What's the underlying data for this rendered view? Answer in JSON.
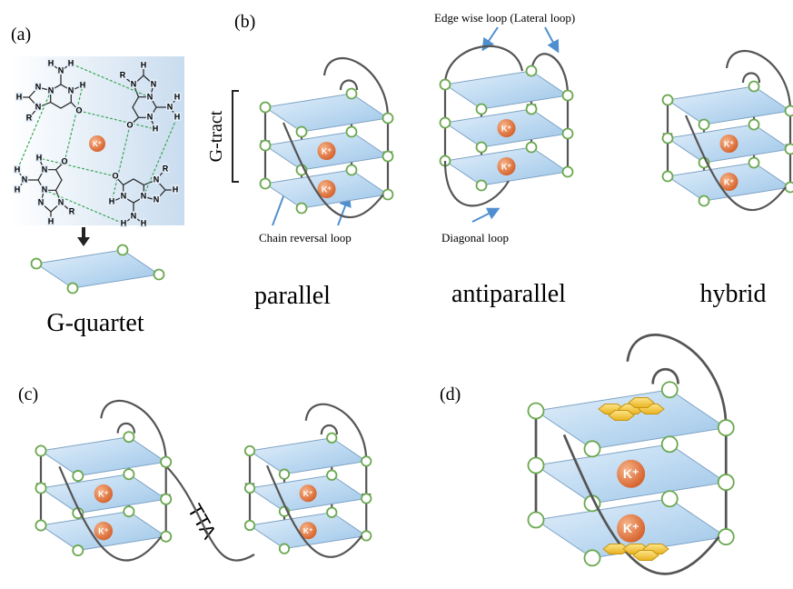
{
  "panel_a": {
    "label": "(a)",
    "atoms": [
      [
        "N",
        "H",
        "O",
        "N",
        "H",
        "H",
        "N",
        "N",
        "N",
        "R",
        "H"
      ],
      [
        "N",
        "H",
        "O",
        "N",
        "H",
        "H",
        "N",
        "N",
        "N",
        "R",
        "H"
      ],
      [
        "N",
        "H",
        "O",
        "N",
        "H",
        "H",
        "N",
        "N",
        "N",
        "R",
        "H"
      ],
      [
        "N",
        "H",
        "O",
        "N",
        "H",
        "H",
        "N",
        "N",
        "N",
        "R",
        "H"
      ]
    ],
    "ion": "K⁺",
    "caption": "G-quartet"
  },
  "panel_b": {
    "label": "(b)",
    "g_tract": "G-tract",
    "chain_reversal_loop": "Chain reversal loop",
    "edgewise_loop": "Edge wise loop (Lateral loop)",
    "diagonal_loop": "Diagonal loop",
    "structures": [
      {
        "name": "parallel",
        "ions": [
          "K⁺",
          "K⁺"
        ]
      },
      {
        "name": "antiparallel",
        "ions": [
          "K⁺",
          "K⁺"
        ]
      },
      {
        "name": "hybrid",
        "ions": [
          "K⁺",
          "K⁺"
        ]
      }
    ]
  },
  "panel_c": {
    "label": "(c)",
    "linker": "TTA",
    "structures": [
      {
        "ions": [
          "K⁺",
          "K⁺"
        ]
      },
      {
        "ions": [
          "K⁺",
          "K⁺"
        ]
      }
    ]
  },
  "panel_d": {
    "label": "(d)",
    "ions": [
      "K⁺",
      "K⁺"
    ]
  }
}
